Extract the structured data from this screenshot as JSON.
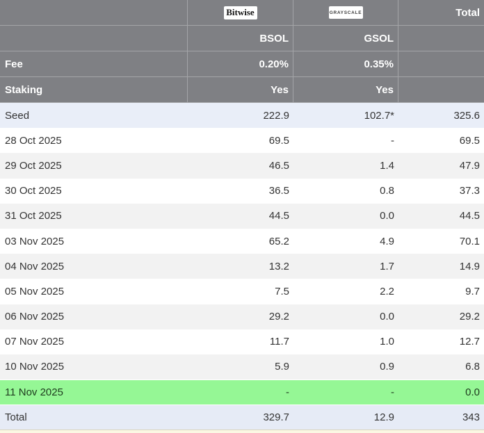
{
  "colors": {
    "header_bg": "#7f8084",
    "header_line": "#a4a5a8",
    "alt_bg": "#f2f2f2",
    "seed_bg": "#e9eef8",
    "total_bg": "#e6ebf6",
    "green_bg": "#95f795",
    "cream_bg": "#fbf7e3"
  },
  "header": {
    "bitwise_logo": "Bitwise",
    "grayscale_logo": "GRAYSCALE",
    "total_label": "Total",
    "ticker_row": {
      "label": "",
      "bsol": "BSOL",
      "gsol": "GSOL",
      "total": ""
    },
    "fee_row": {
      "label": "Fee",
      "bsol": "0.20%",
      "gsol": "0.35%",
      "total": ""
    },
    "staking_row": {
      "label": "Staking",
      "bsol": "Yes",
      "gsol": "Yes",
      "total": ""
    }
  },
  "rows": [
    {
      "label": "Seed",
      "bsol": "222.9",
      "gsol": "102.7*",
      "total": "325.6"
    },
    {
      "label": "28 Oct 2025",
      "bsol": "69.5",
      "gsol": "-",
      "total": "69.5"
    },
    {
      "label": "29 Oct 2025",
      "bsol": "46.5",
      "gsol": "1.4",
      "total": "47.9"
    },
    {
      "label": "30 Oct 2025",
      "bsol": "36.5",
      "gsol": "0.8",
      "total": "37.3"
    },
    {
      "label": "31 Oct 2025",
      "bsol": "44.5",
      "gsol": "0.0",
      "total": "44.5"
    },
    {
      "label": "03 Nov 2025",
      "bsol": "65.2",
      "gsol": "4.9",
      "total": "70.1"
    },
    {
      "label": "04 Nov 2025",
      "bsol": "13.2",
      "gsol": "1.7",
      "total": "14.9"
    },
    {
      "label": "05 Nov 2025",
      "bsol": "7.5",
      "gsol": "2.2",
      "total": "9.7"
    },
    {
      "label": "06 Nov 2025",
      "bsol": "29.2",
      "gsol": "0.0",
      "total": "29.2"
    },
    {
      "label": "07 Nov 2025",
      "bsol": "11.7",
      "gsol": "1.0",
      "total": "12.7"
    },
    {
      "label": "10 Nov 2025",
      "bsol": "5.9",
      "gsol": "0.9",
      "total": "6.8"
    },
    {
      "label": "11 Nov 2025",
      "bsol": "-",
      "gsol": "-",
      "total": "0.0"
    },
    {
      "label": "Total",
      "bsol": "329.7",
      "gsol": "12.9",
      "total": "343"
    }
  ],
  "chart_data": {
    "type": "table",
    "columns": [
      "",
      "Bitwise BSOL",
      "Grayscale GSOL",
      "Total"
    ],
    "fund_metadata": {
      "tickers": [
        "BSOL",
        "GSOL"
      ],
      "fees": [
        "0.20%",
        "0.35%"
      ],
      "staking": [
        "Yes",
        "Yes"
      ]
    },
    "rows": [
      [
        "Seed",
        222.9,
        "102.7*",
        325.6
      ],
      [
        "28 Oct 2025",
        69.5,
        null,
        69.5
      ],
      [
        "29 Oct 2025",
        46.5,
        1.4,
        47.9
      ],
      [
        "30 Oct 2025",
        36.5,
        0.8,
        37.3
      ],
      [
        "31 Oct 2025",
        44.5,
        0.0,
        44.5
      ],
      [
        "03 Nov 2025",
        65.2,
        4.9,
        70.1
      ],
      [
        "04 Nov 2025",
        13.2,
        1.7,
        14.9
      ],
      [
        "05 Nov 2025",
        7.5,
        2.2,
        9.7
      ],
      [
        "06 Nov 2025",
        29.2,
        0.0,
        29.2
      ],
      [
        "07 Nov 2025",
        11.7,
        1.0,
        12.7
      ],
      [
        "10 Nov 2025",
        5.9,
        0.9,
        6.8
      ],
      [
        "11 Nov 2025",
        null,
        null,
        0.0
      ],
      [
        "Total",
        329.7,
        12.9,
        343
      ]
    ],
    "highlighted_rows": {
      "seed": 0,
      "current_day_green": 11,
      "total": 12
    },
    "legend_position": "none",
    "grid": true
  }
}
